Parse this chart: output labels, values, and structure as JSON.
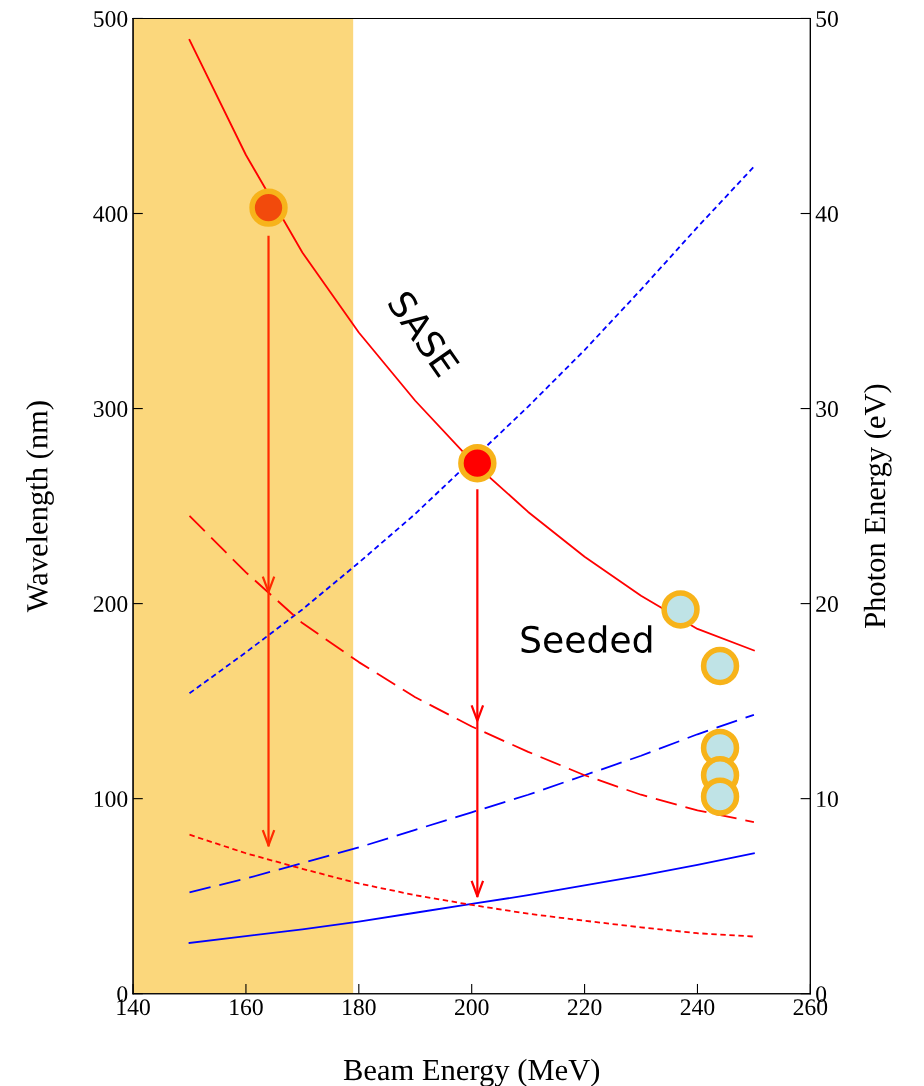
{
  "chart_data": {
    "type": "line",
    "xlabel": "Beam Energy (MeV)",
    "ylabel": "Wavelength (nm)",
    "y2label": "Photon Energy (eV)",
    "xlim": [
      140,
      260
    ],
    "xticks": [
      140,
      160,
      180,
      200,
      220,
      240,
      260
    ],
    "ylim": [
      0,
      500
    ],
    "yticks": [
      0,
      100,
      200,
      300,
      400,
      500
    ],
    "y2lim": [
      0,
      50
    ],
    "y2ticks": [
      0,
      10,
      20,
      30,
      40,
      50
    ],
    "grid": false,
    "legend": false,
    "marker": "none",
    "bands": [
      {
        "axis": "x",
        "from": 140,
        "to": 179,
        "color": "#fbd77c"
      }
    ],
    "series": [
      {
        "x": [
          150,
          160,
          170,
          180,
          190,
          200,
          210,
          220,
          230,
          240,
          250
        ],
        "values": [
          489,
          430,
          380,
          339,
          304,
          273,
          247,
          224,
          204,
          187,
          176
        ],
        "color": "#ff0000",
        "line_style": "solid"
      },
      {
        "x": [
          150,
          160,
          170,
          180,
          190,
          200,
          210,
          220,
          230,
          240,
          250
        ],
        "values": [
          245,
          216,
          190,
          170,
          152,
          137,
          124,
          112,
          102,
          94,
          88
        ],
        "color": "#ff0000",
        "line_style": "dashed"
      },
      {
        "x": [
          150,
          160,
          170,
          180,
          190,
          200,
          210,
          220,
          230,
          240,
          250
        ],
        "values": [
          81.5,
          72,
          64,
          56.5,
          50.5,
          45.5,
          41,
          37.4,
          34,
          31,
          29.3
        ],
        "color": "#ff0000",
        "line_style": "dotted"
      },
      {
        "x": [
          150,
          160,
          170,
          180,
          190,
          210,
          220,
          230,
          240,
          250
        ],
        "values": [
          15.4,
          17.5,
          19.7,
          22.1,
          24.6,
          30.1,
          33.0,
          36.1,
          39.3,
          42.4
        ],
        "color": "#0000ff",
        "line_style": "dotted",
        "axis": "y2"
      },
      {
        "x": [
          150,
          160,
          170,
          180,
          190,
          200,
          210,
          220,
          230,
          240,
          250
        ],
        "values": [
          5.2,
          5.9,
          6.7,
          7.5,
          8.4,
          9.3,
          10.2,
          11.2,
          12.2,
          13.3,
          14.3
        ],
        "color": "#0000ff",
        "line_style": "dashed",
        "axis": "y2"
      },
      {
        "x": [
          150,
          160,
          170,
          180,
          190,
          200,
          210,
          220,
          230,
          240,
          250
        ],
        "values": [
          2.6,
          2.95,
          3.3,
          3.7,
          4.15,
          4.6,
          5.05,
          5.55,
          6.05,
          6.6,
          7.2
        ],
        "color": "#0000ff",
        "line_style": "solid",
        "axis": "y2"
      },
      {
        "x": [
          164,
          164,
          164
        ],
        "values": [
          388,
          206,
          76
        ],
        "color": "#ff2a00",
        "line_style": "solid"
      },
      {
        "x": [
          201,
          201,
          201
        ],
        "values": [
          258,
          140,
          50
        ],
        "color": "#ff0000",
        "line_style": "solid"
      },
      {
        "type": "scatter",
        "marker": "circle",
        "x": [
          164,
          201,
          237,
          244,
          244,
          244,
          244
        ],
        "values": [
          403,
          272,
          197,
          168,
          126,
          112,
          101
        ],
        "colors": [
          "#f24a0c",
          "#ff0000",
          "#bfe3e6",
          "#bfe3e6",
          "#bfe3e6",
          "#bfe3e6",
          "#bfe3e6"
        ],
        "color": "#f7b31a"
      }
    ],
    "annotations": [
      "SASE",
      "Seeded"
    ]
  }
}
